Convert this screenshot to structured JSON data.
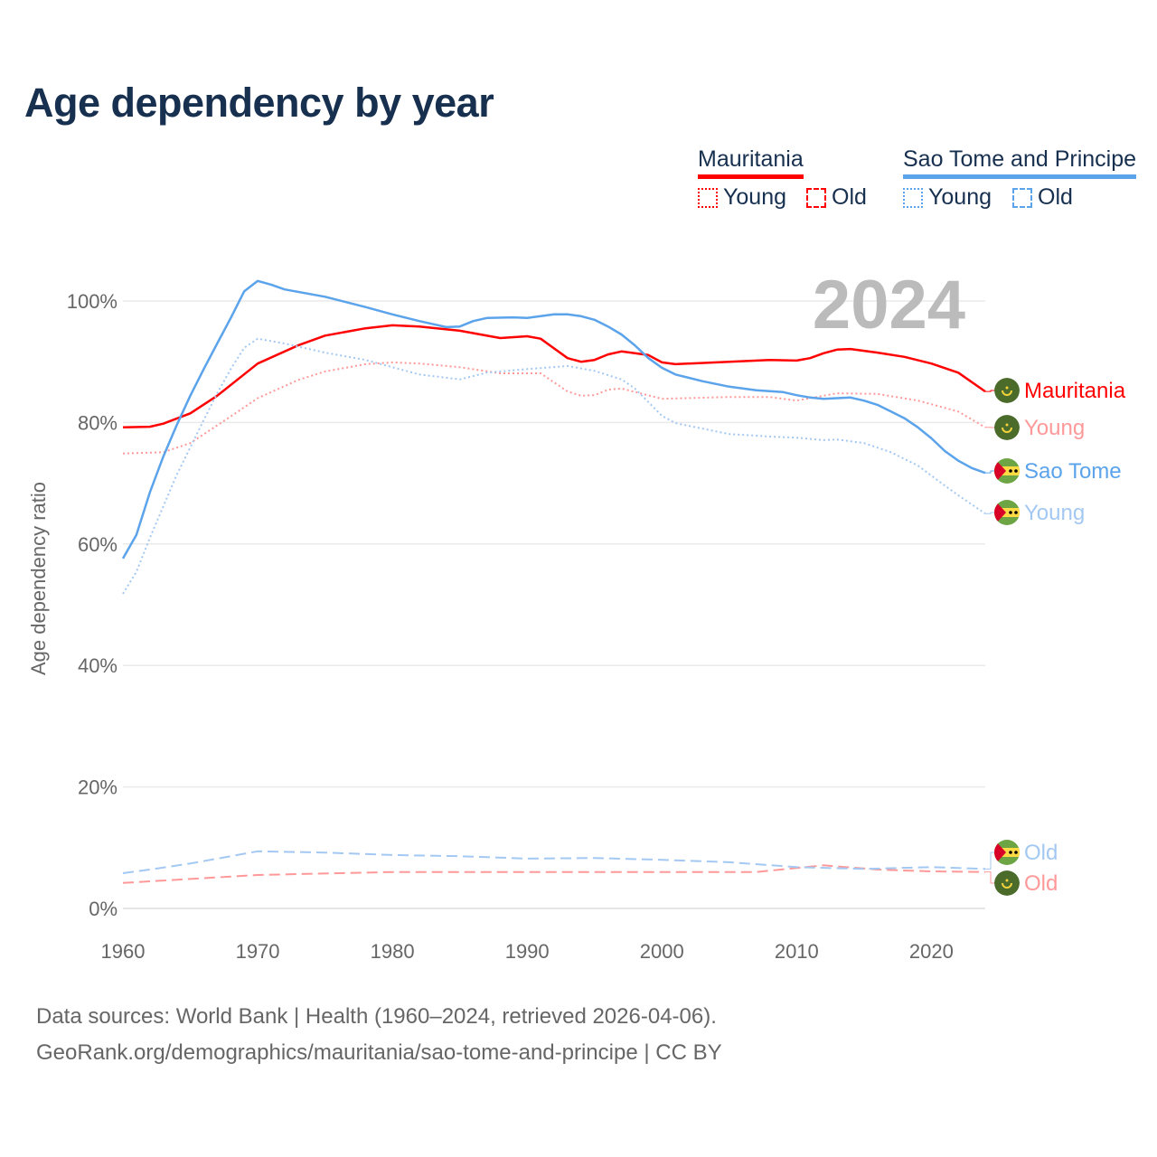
{
  "title": "Age dependency by year",
  "legend": {
    "countries": [
      {
        "name": "Mauritania",
        "color": "#ff0000",
        "items": [
          "Young",
          "Old"
        ]
      },
      {
        "name": "Sao Tome and Principe",
        "color": "#5ba3ea",
        "items": [
          "Young",
          "Old"
        ]
      }
    ]
  },
  "footer": {
    "line1": "Data sources: World Bank | Health (1960–2024, retrieved 2026-04-06).",
    "line2": "GeoRank.org/demographics/mauritania/sao-tome-and-principe | CC BY"
  },
  "chart_data": {
    "type": "line",
    "title": "Age dependency by year",
    "year_label": "2024",
    "xlabel": "",
    "ylabel": "Age dependency ratio",
    "xlim": [
      1960,
      2024
    ],
    "ylim": [
      0,
      100
    ],
    "xticks": [
      1960,
      1970,
      1980,
      1990,
      2000,
      2010,
      2020
    ],
    "yticks": [
      "0%",
      "20%",
      "40%",
      "60%",
      "80%",
      "100%"
    ],
    "ytick_values": [
      0,
      20,
      40,
      60,
      80,
      100
    ],
    "grid": true,
    "series": [
      {
        "name": "Mauritania",
        "end_label": "Mauritania",
        "country": "mauritania",
        "style": "solid",
        "color": "#ff0000",
        "x": [
          1960,
          1962,
          1963,
          1965,
          1967,
          1970,
          1973,
          1975,
          1978,
          1980,
          1982,
          1985,
          1988,
          1990,
          1991,
          1993,
          1994,
          1995,
          1996,
          1997,
          1999,
          2000,
          2001,
          2005,
          2008,
          2010,
          2011,
          2012,
          2013,
          2014,
          2016,
          2018,
          2020,
          2022,
          2024
        ],
        "values": [
          79.2,
          79.3,
          79.8,
          81.5,
          84.4,
          89.7,
          92.7,
          94.3,
          95.5,
          96,
          95.8,
          95.1,
          93.9,
          94.2,
          93.8,
          90.6,
          90,
          90.3,
          91.2,
          91.7,
          91.1,
          89.9,
          89.6,
          90,
          90.3,
          90.2,
          90.6,
          91.4,
          92,
          92.1,
          91.5,
          90.8,
          89.7,
          88.2,
          85.1
        ]
      },
      {
        "name": "Mauritania Young",
        "end_label": "Young",
        "country": "mauritania",
        "style": "dotted",
        "color": "#ff9999",
        "x": [
          1960,
          1963,
          1965,
          1968,
          1970,
          1973,
          1975,
          1978,
          1980,
          1982,
          1985,
          1988,
          1991,
          1993,
          1994,
          1995,
          1996,
          1997,
          2000,
          2005,
          2008,
          2010,
          2013,
          2016,
          2019,
          2022,
          2024
        ],
        "values": [
          74.9,
          75.1,
          76.6,
          81,
          84,
          87,
          88.4,
          89.6,
          89.9,
          89.7,
          89.1,
          88.1,
          88.1,
          85.1,
          84.4,
          84.5,
          85.4,
          85.6,
          83.9,
          84.2,
          84.2,
          83.6,
          84.8,
          84.7,
          83.6,
          81.8,
          79.2
        ]
      },
      {
        "name": "Mauritania Old",
        "end_label": "Old",
        "country": "mauritania",
        "style": "dashed",
        "color": "#ff9999",
        "x": [
          1960,
          1970,
          1980,
          1990,
          2000,
          2007,
          2012,
          2016,
          2020,
          2024
        ],
        "values": [
          4.2,
          5.5,
          6,
          6,
          6,
          6,
          7.1,
          6.4,
          6.1,
          6
        ]
      },
      {
        "name": "Sao Tome",
        "end_label": "Sao Tome",
        "country": "stp",
        "style": "solid",
        "color": "#5ba3ea",
        "x": [
          1960,
          1961,
          1962,
          1963,
          1964,
          1965,
          1966,
          1967,
          1968,
          1969,
          1970,
          1971,
          1972,
          1975,
          1978,
          1980,
          1982,
          1984,
          1985,
          1986,
          1987,
          1989,
          1990,
          1991,
          1992,
          1993,
          1994,
          1995,
          1996,
          1997,
          1998,
          1999,
          2000,
          2001,
          2003,
          2005,
          2007,
          2009,
          2010,
          2011,
          2012,
          2014,
          2015,
          2016,
          2017,
          2018,
          2019,
          2020,
          2021,
          2022,
          2023,
          2024
        ],
        "values": [
          57.6,
          61.5,
          68.5,
          74.4,
          79.6,
          84.4,
          88.8,
          93,
          97.2,
          101.6,
          103.3,
          102.7,
          101.9,
          100.7,
          99,
          97.8,
          96.7,
          95.7,
          95.8,
          96.7,
          97.2,
          97.3,
          97.2,
          97.5,
          97.8,
          97.8,
          97.5,
          96.9,
          95.8,
          94.5,
          92.7,
          90.6,
          89,
          87.9,
          86.8,
          85.9,
          85.3,
          85,
          84.5,
          84.1,
          83.9,
          84.1,
          83.6,
          82.9,
          81.8,
          80.7,
          79.2,
          77.4,
          75.3,
          73.7,
          72.5,
          71.7
        ]
      },
      {
        "name": "Sao Tome Young",
        "end_label": "Young",
        "country": "stp",
        "style": "dotted",
        "color": "#a3c8f2",
        "x": [
          1960,
          1961,
          1962,
          1963,
          1964,
          1965,
          1966,
          1967,
          1968,
          1969,
          1970,
          1972,
          1975,
          1978,
          1980,
          1982,
          1985,
          1987,
          1990,
          1993,
          1995,
          1997,
          1998,
          2000,
          2001,
          2005,
          2008,
          2010,
          2012,
          2013,
          2015,
          2017,
          2019,
          2021,
          2022,
          2024
        ],
        "values": [
          51.8,
          55.4,
          61,
          66.2,
          71.4,
          75.9,
          80.4,
          84.8,
          88.8,
          92.3,
          93.8,
          93,
          91.5,
          90.3,
          89.1,
          87.9,
          87.1,
          88.2,
          88.8,
          89.3,
          88.5,
          87.1,
          85.6,
          81.1,
          79.9,
          78.1,
          77.7,
          77.5,
          77.1,
          77.2,
          76.6,
          75.1,
          72.9,
          69.6,
          68,
          65
        ]
      },
      {
        "name": "Sao Tome Old",
        "end_label": "Old",
        "country": "stp",
        "style": "dashed",
        "color": "#a3c8f2",
        "x": [
          1960,
          1962,
          1965,
          1968,
          1970,
          1975,
          1980,
          1985,
          1990,
          1995,
          2000,
          2005,
          2010,
          2015,
          2020,
          2024
        ],
        "values": [
          5.8,
          6.4,
          7.4,
          8.6,
          9.4,
          9.2,
          8.8,
          8.6,
          8.2,
          8.3,
          8,
          7.6,
          6.8,
          6.5,
          6.8,
          6.5
        ]
      }
    ]
  }
}
